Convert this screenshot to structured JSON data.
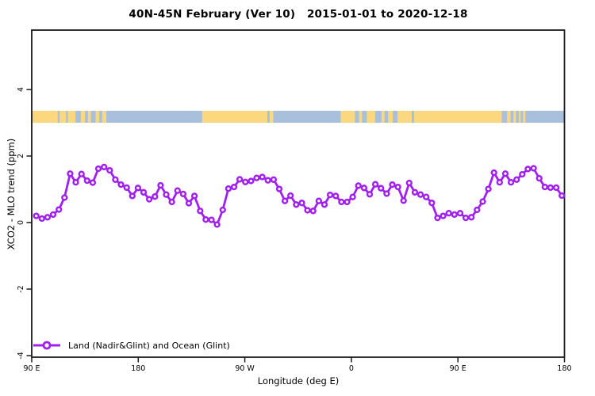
{
  "title": "40N-45N February (Ver 10)   2015-01-01 to 2020-12-18",
  "axes": {
    "x": {
      "label": "Longitude (deg E)",
      "tick_labels": [
        "90 E",
        "180",
        "90 W",
        "0",
        "90 E",
        "180"
      ],
      "tick_lons": [
        90,
        180,
        270,
        360,
        450,
        540
      ],
      "lim": [
        90,
        540
      ]
    },
    "y": {
      "label": "XCO2 - MLO trend (ppm)",
      "tick_labels": [
        "4",
        "2",
        "0",
        "-2",
        "-4"
      ],
      "tick_values": [
        4,
        2,
        0,
        -2,
        -4
      ],
      "lim": [
        -4.05,
        5.79
      ]
    }
  },
  "legend": {
    "label": "Land (Nadir&Glint) and Ocean (Glint)",
    "marker": "open-circle-on-line"
  },
  "colors": {
    "series": "#A020F0",
    "land": "#FBD77E",
    "ocean": "#A9C0DC",
    "axis": "#1a1a1a",
    "background": "#ffffff"
  },
  "map_strip": {
    "description": "land/ocean map band for 40N-45N drawn as horizontal stripe",
    "y_ppm_range": [
      3.0,
      3.36
    ],
    "base": "land",
    "ocean_segments_lon": [
      [
        112,
        113.5
      ],
      [
        119,
        120.5
      ],
      [
        127,
        131.5
      ],
      [
        135,
        137.5
      ],
      [
        140,
        144
      ],
      [
        147,
        149.5
      ],
      [
        153,
        234
      ],
      [
        289,
        291
      ],
      [
        294,
        351
      ],
      [
        363,
        366.5
      ],
      [
        369,
        373
      ],
      [
        380,
        385.5
      ],
      [
        388,
        391
      ],
      [
        395,
        399
      ],
      [
        411,
        413
      ],
      [
        487,
        491.5
      ],
      [
        494.5,
        497
      ],
      [
        499,
        501.5
      ],
      [
        503,
        505
      ],
      [
        507,
        540
      ]
    ]
  },
  "chart_data": {
    "type": "line",
    "title": "40N-45N February (Ver 10)   2015-01-01 to 2020-12-18",
    "xlabel": "Longitude (deg E)",
    "ylabel": "XCO2 - MLO trend (ppm)",
    "xlim": [
      90,
      540
    ],
    "ylim": [
      -4.05,
      5.79
    ],
    "x_axis_note": "longitude in continuous degrees east wrapping the globe from 90E to 180",
    "grid": false,
    "legend_position": "bottom-left",
    "series": [
      {
        "name": "Land (Nadir&Glint) and Ocean (Glint)",
        "marker": "open-circle",
        "color": "#A020F0",
        "lon_start": 93.8,
        "lon_step": 4.774,
        "values": [
          0.2,
          0.12,
          0.16,
          0.24,
          0.39,
          0.75,
          1.47,
          1.21,
          1.46,
          1.26,
          1.2,
          1.62,
          1.67,
          1.57,
          1.29,
          1.14,
          1.05,
          0.8,
          1.04,
          0.91,
          0.7,
          0.78,
          1.12,
          0.84,
          0.62,
          0.96,
          0.86,
          0.58,
          0.8,
          0.35,
          0.09,
          0.08,
          -0.06,
          0.38,
          1.02,
          1.07,
          1.3,
          1.22,
          1.25,
          1.34,
          1.37,
          1.27,
          1.29,
          1.01,
          0.65,
          0.81,
          0.54,
          0.59,
          0.37,
          0.35,
          0.65,
          0.54,
          0.83,
          0.8,
          0.62,
          0.62,
          0.77,
          1.11,
          1.04,
          0.85,
          1.15,
          1.03,
          0.87,
          1.14,
          1.07,
          0.66,
          1.19,
          0.91,
          0.84,
          0.77,
          0.59,
          0.14,
          0.2,
          0.28,
          0.24,
          0.28,
          0.14,
          0.16,
          0.38,
          0.63,
          1.01,
          1.5,
          1.21,
          1.47,
          1.21,
          1.29,
          1.45,
          1.61,
          1.63,
          1.33,
          1.07,
          1.05,
          1.05,
          0.81
        ]
      }
    ]
  }
}
